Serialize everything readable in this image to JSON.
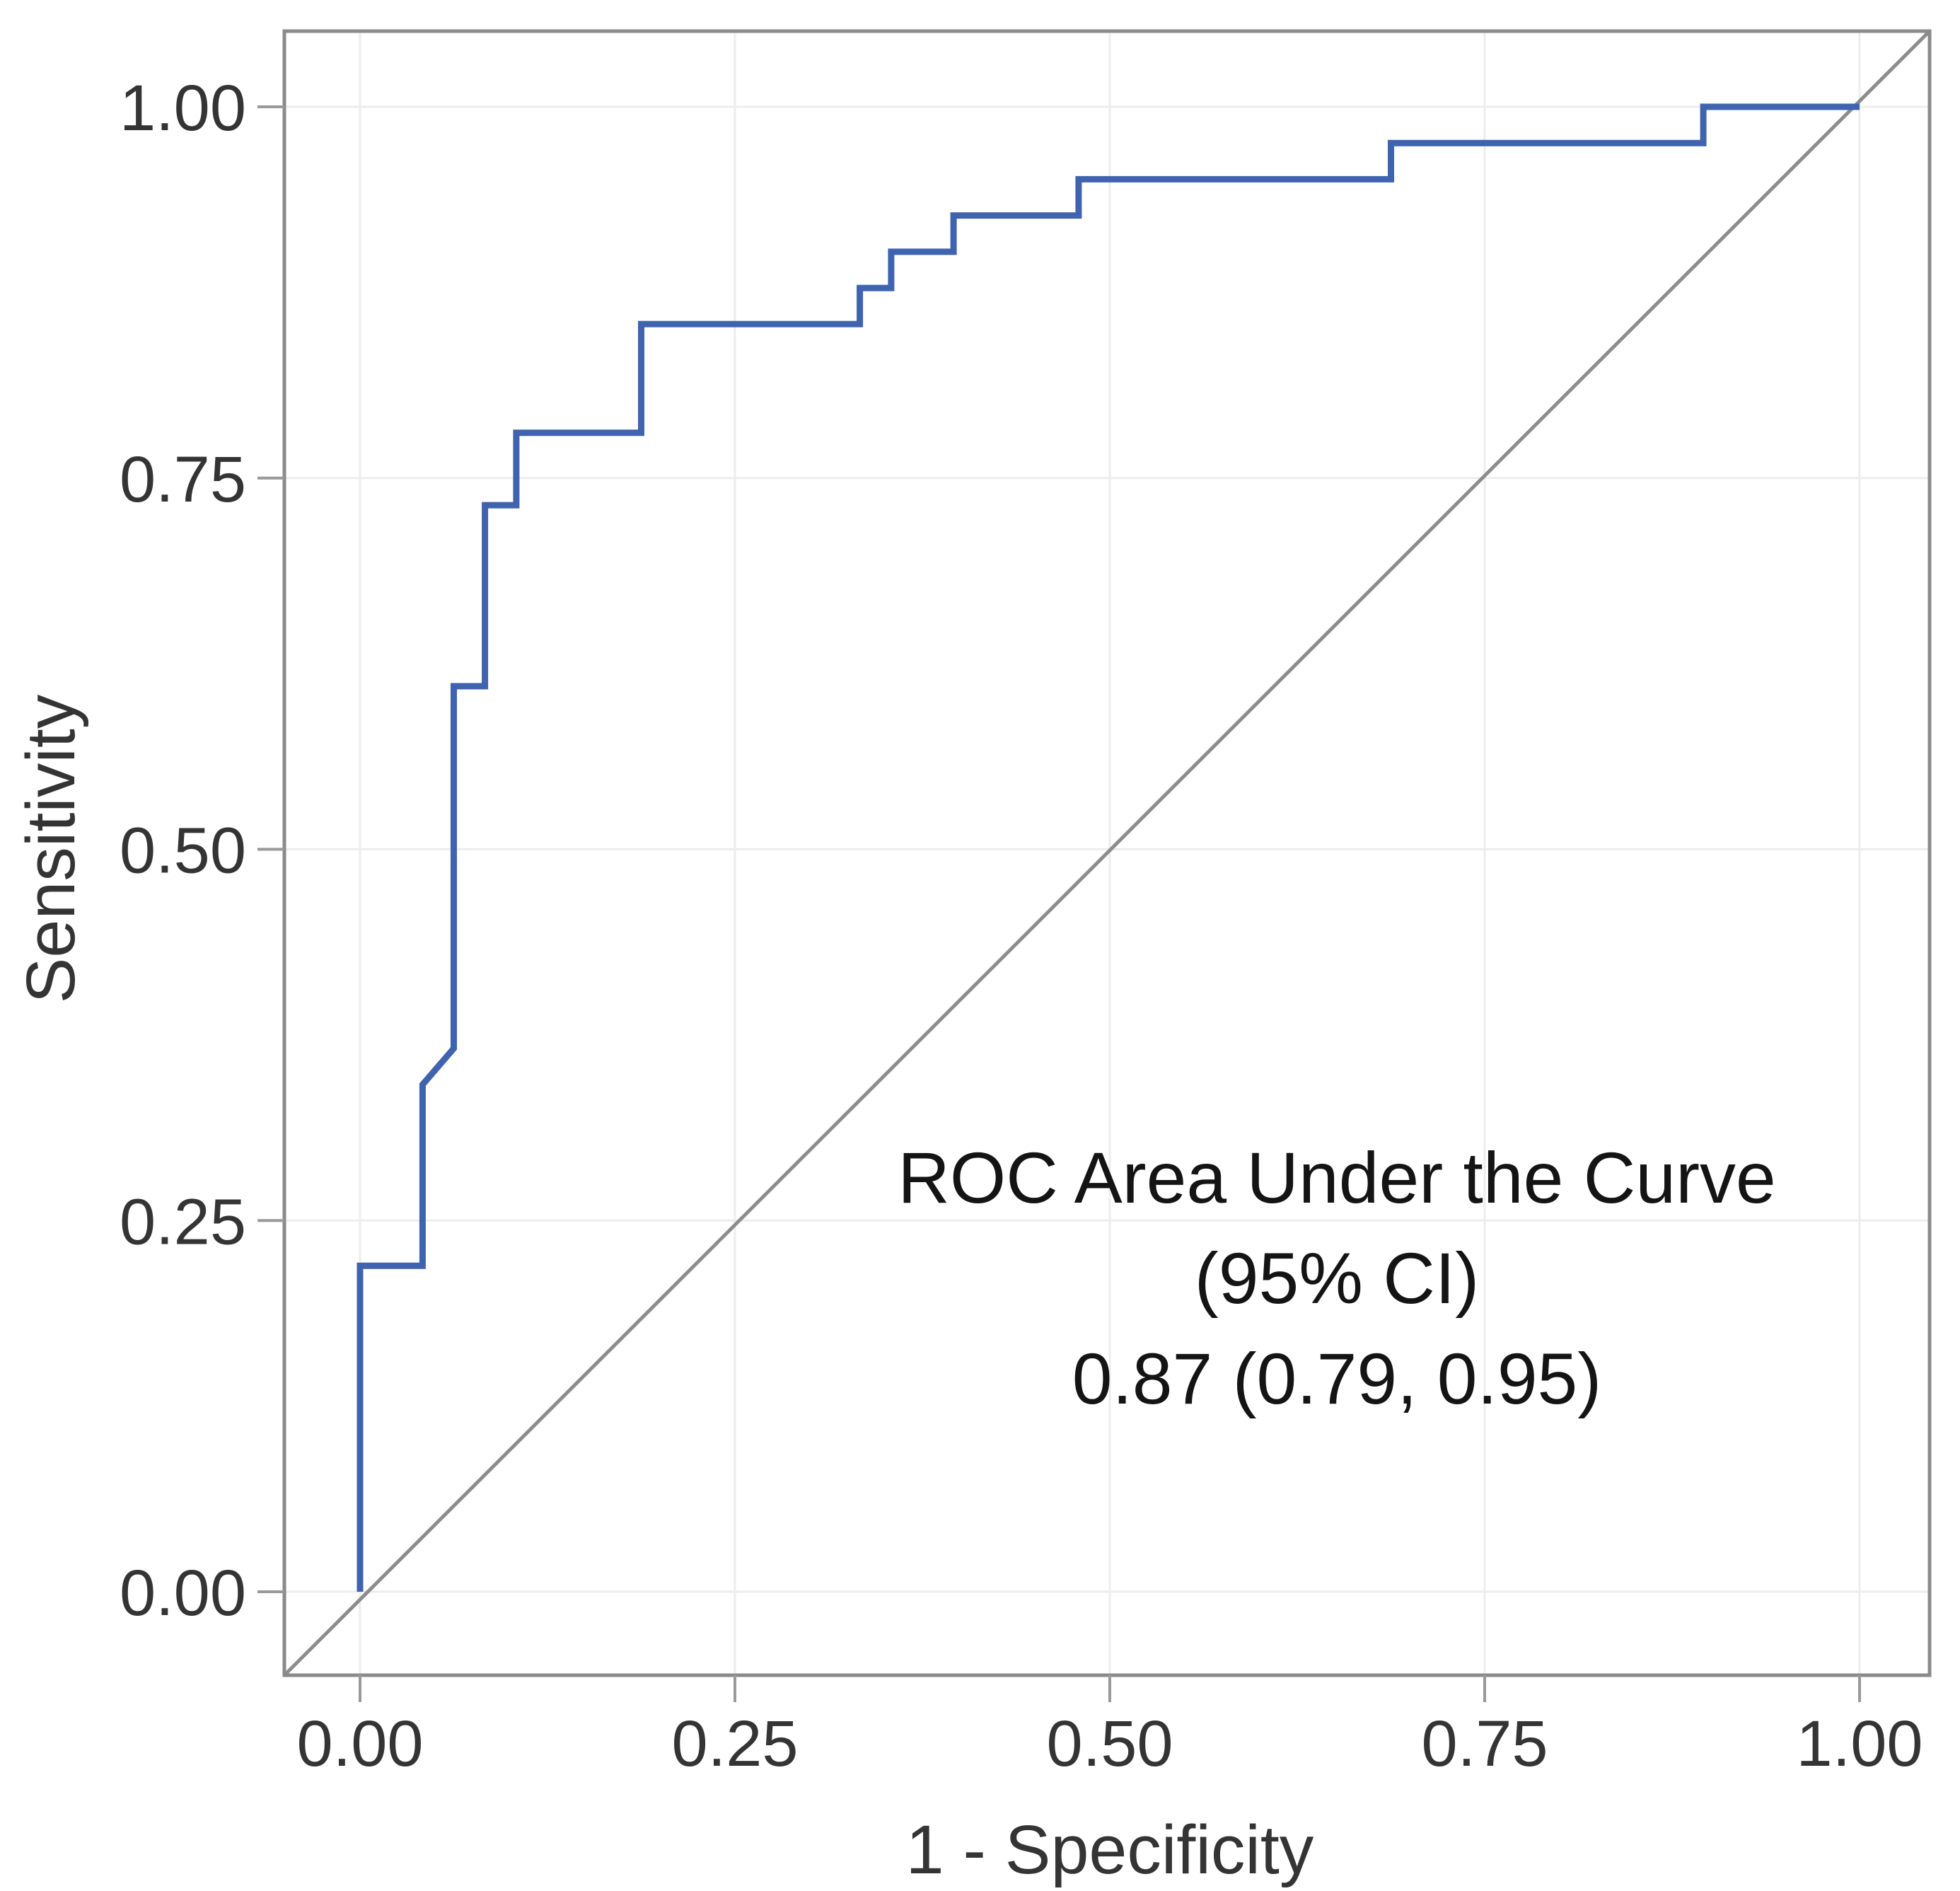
{
  "chart_data": {
    "type": "line",
    "subtype": "roc-step-curve",
    "title": "",
    "xlabel": "1 - Specificity",
    "ylabel": "Sensitivity",
    "xlim": [
      -0.05,
      1.05
    ],
    "ylim": [
      -0.05,
      1.05
    ],
    "grid": true,
    "legend_position": "none",
    "x_ticks": {
      "values": [
        0,
        0.25,
        0.5,
        0.75,
        1
      ],
      "labels": [
        "0.00",
        "0.25",
        "0.50",
        "0.75",
        "1.00"
      ]
    },
    "y_ticks": {
      "values": [
        0,
        0.25,
        0.5,
        0.75,
        1
      ],
      "labels": [
        "0.00",
        "0.25",
        "0.50",
        "0.75",
        "1.00"
      ]
    },
    "series": [
      {
        "name": "ROC curve",
        "color": "#3f63ae",
        "points": [
          [
            0.0,
            0.0
          ],
          [
            0.0,
            0.2195
          ],
          [
            0.0417,
            0.2195
          ],
          [
            0.0417,
            0.3415
          ],
          [
            0.0625,
            0.3659
          ],
          [
            0.0625,
            0.6098
          ],
          [
            0.0833,
            0.6098
          ],
          [
            0.0833,
            0.7317
          ],
          [
            0.1042,
            0.7317
          ],
          [
            0.1042,
            0.7805
          ],
          [
            0.1875,
            0.7805
          ],
          [
            0.1875,
            0.8537
          ],
          [
            0.3333,
            0.8537
          ],
          [
            0.3333,
            0.878
          ],
          [
            0.3542,
            0.878
          ],
          [
            0.3542,
            0.9024
          ],
          [
            0.3958,
            0.9024
          ],
          [
            0.3958,
            0.9268
          ],
          [
            0.4792,
            0.9268
          ],
          [
            0.4792,
            0.9512
          ],
          [
            0.6875,
            0.9512
          ],
          [
            0.6875,
            0.9756
          ],
          [
            0.8958,
            0.9756
          ],
          [
            0.8958,
            1.0
          ],
          [
            1.0,
            1.0
          ]
        ]
      },
      {
        "name": "Reference diagonal (chance line)",
        "color": "#8c8c8c",
        "points": [
          [
            0,
            0
          ],
          [
            1,
            1
          ]
        ]
      }
    ],
    "annotation": {
      "line1": "ROC Area Under the Curve",
      "line2": "(95% CI)",
      "line3": "0.87 (0.79, 0.95)",
      "auc": 0.87,
      "ci_lower": 0.79,
      "ci_upper": 0.95
    }
  },
  "colors": {
    "curve": "#3f63ae",
    "reference_line": "#8c8c8c",
    "plot_border": "#8a8a8a",
    "gridline": "#ededed",
    "tick": "#999999",
    "tick_label_text": "#343434",
    "axis_title_text": "#343434",
    "annotation_text": "#141414",
    "background": "#ffffff"
  }
}
